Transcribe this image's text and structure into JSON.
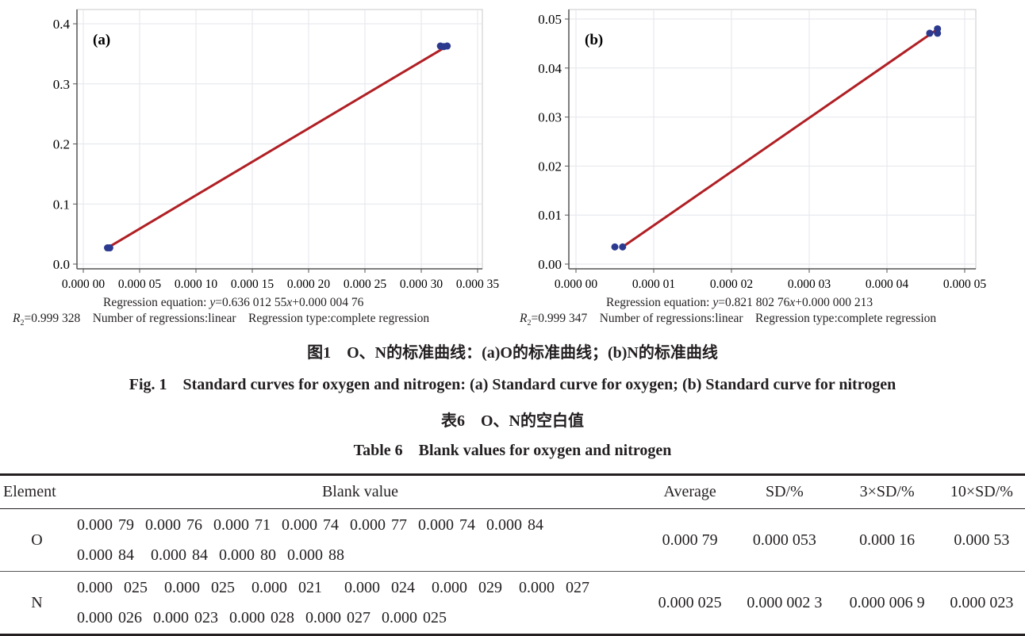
{
  "chart_data": [
    {
      "type": "scatter",
      "panel_label": "(a)",
      "xlim": [
        0,
        0.00035
      ],
      "ylim": [
        0,
        0.4
      ],
      "x_ticks": [
        0,
        5e-05,
        0.0001,
        0.00015,
        0.0002,
        0.00025,
        0.0003,
        0.00035
      ],
      "x_tick_labels": [
        "0.000 00",
        "0.000 05",
        "0.000 10",
        "0.000 15",
        "0.000 20",
        "0.000 25",
        "0.000 30",
        "0.000 35"
      ],
      "y_ticks": [
        0,
        0.1,
        0.2,
        0.3,
        0.4
      ],
      "y_tick_labels": [
        "0.0",
        "0.1",
        "0.2",
        "0.3",
        "0.4"
      ],
      "grid": true,
      "points": [
        {
          "x": 2.15e-05,
          "y": 0.027
        },
        {
          "x": 2.35e-05,
          "y": 0.027
        },
        {
          "x": 0.000317,
          "y": 0.363
        },
        {
          "x": 0.00032,
          "y": 0.362
        },
        {
          "x": 0.000323,
          "y": 0.363
        }
      ],
      "fit_line": {
        "x": [
          2.15e-05,
          0.000323
        ],
        "y": [
          0.027,
          0.363
        ]
      },
      "point_color": "#2b3a8f",
      "line_color": "#b01f24",
      "regression_equation_prefix": "Regression equation: ",
      "regression_equation_y": "y",
      "regression_equation_mid": "=0.636 012 55",
      "regression_equation_x": "x",
      "regression_equation_suffix": "+0.000 004 76",
      "r2_symbol": "R",
      "r2_sub": "2",
      "r2_value": "=0.999 328",
      "number_of_regressions": "Number of regressions:linear",
      "regression_type": "Regression type:complete regression"
    },
    {
      "type": "scatter",
      "panel_label": "(b)",
      "xlim": [
        0,
        5e-05
      ],
      "ylim": [
        0,
        0.05
      ],
      "x_ticks": [
        0,
        1e-05,
        2e-05,
        3e-05,
        4e-05,
        5e-05
      ],
      "x_tick_labels": [
        "0.000 00",
        "0.000 01",
        "0.000 02",
        "0.000 03",
        "0.000 04",
        "0.000 05"
      ],
      "y_ticks": [
        0,
        0.01,
        0.02,
        0.03,
        0.04,
        0.05
      ],
      "y_tick_labels": [
        "0.00",
        "0.01",
        "0.02",
        "0.03",
        "0.04",
        "0.05"
      ],
      "grid": true,
      "points": [
        {
          "x": 5e-06,
          "y": 0.0035
        },
        {
          "x": 6e-06,
          "y": 0.0035
        },
        {
          "x": 4.55e-05,
          "y": 0.0471
        },
        {
          "x": 4.65e-05,
          "y": 0.048
        },
        {
          "x": 4.65e-05,
          "y": 0.0471
        }
      ],
      "fit_line": {
        "x": [
          6e-06,
          4.62e-05
        ],
        "y": [
          0.0035,
          0.0476
        ]
      },
      "point_color": "#2b3a8f",
      "line_color": "#b01f24",
      "regression_equation_prefix": "Regression equation: ",
      "regression_equation_y": "y",
      "regression_equation_mid": "=0.821 802 76",
      "regression_equation_x": "x",
      "regression_equation_suffix": "+0.000 000 213",
      "r2_symbol": "R",
      "r2_sub": "2",
      "r2_value": "=0.999 347",
      "number_of_regressions": "Number of regressions:linear",
      "regression_type": "Regression type:complete regression"
    }
  ],
  "figure_caption_cn": "图1　O、N的标准曲线：(a)O的标准曲线；(b)N的标准曲线",
  "figure_caption_en": "Fig. 1　Standard curves for oxygen and nitrogen: (a) Standard curve for oxygen; (b) Standard curve for nitrogen",
  "table_caption_cn": "表6　O、N的空白值",
  "table_caption_en": "Table 6　Blank values for oxygen and nitrogen",
  "table": {
    "headers": [
      "Element",
      "Blank value",
      "Average",
      "SD/%",
      "3×SD/%",
      "10×SD/%"
    ],
    "rows": [
      {
        "element": "O",
        "blank_line1": "0.000 79  0.000 76  0.000 71  0.000 74  0.000 77  0.000 74  0.000 84",
        "blank_line2": "0.000 84   0.000 84  0.000 80  0.000 88",
        "average": "0.000 79",
        "sd": "0.000 053",
        "sd3": "0.000 16",
        "sd10": "0.000 53"
      },
      {
        "element": "N",
        "blank_line1": "0.000  025   0.000  025   0.000  021    0.000  024   0.000  029   0.000  027",
        "blank_line2": "0.000 026  0.000 023  0.000 028  0.000 027  0.000 025",
        "average": "0.000 025",
        "sd": "0.000 002 3",
        "sd3": "0.000 006 9",
        "sd10": "0.000 023"
      }
    ]
  }
}
